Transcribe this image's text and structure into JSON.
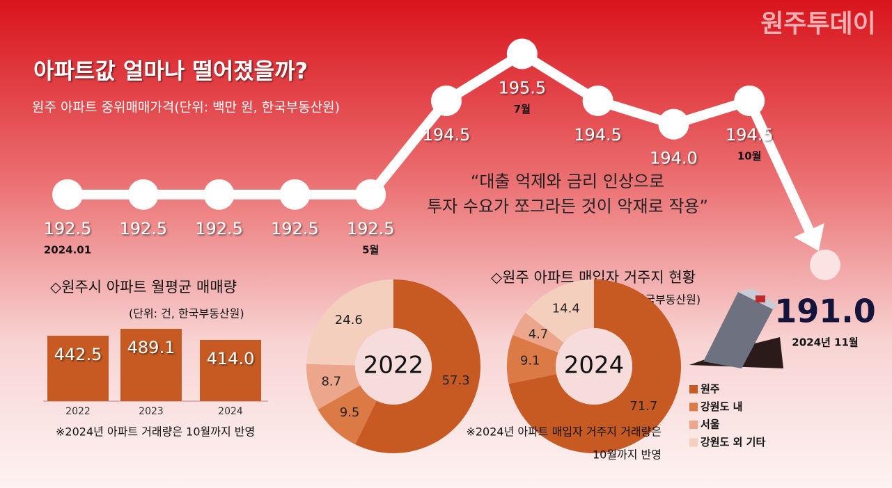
{
  "watermark": "원주투데이",
  "chart_data": [
    {
      "type": "line",
      "title": "아파트값 얼마나 떨어졌을까?",
      "subtitle": "원주 아파트 중위매매가격(단위: 백만 원, 한국부동산원)",
      "categories": [
        "2024.01",
        null,
        null,
        null,
        "5월",
        null,
        "7월",
        null,
        null,
        "10월",
        "2024년 11월"
      ],
      "values": [
        192.5,
        192.5,
        192.5,
        192.5,
        192.5,
        194.5,
        195.5,
        194.5,
        194.0,
        194.5,
        191.0
      ],
      "value_labels": [
        "192.5",
        "192.5",
        "192.5",
        "192.5",
        "192.5",
        "194.5",
        "195.5",
        "194.5",
        "194.0",
        "194.5",
        "191.0"
      ],
      "color": "#ffffff",
      "annotation": [
        "“대출 억제와 금리 인상으로",
        "투자 수요가 쪼그라든 것이 악재로 작용”"
      ]
    },
    {
      "type": "bar",
      "title": "◇원주시 아파트 월평균 매매량",
      "subtitle": "(단위: 건, 한국부동산원)",
      "categories": [
        "2022",
        "2023",
        "2024"
      ],
      "values": [
        442.5,
        489.1,
        414.0
      ],
      "value_labels": [
        "442.5",
        "489.1",
        "414.0"
      ],
      "color": "#c65a22",
      "note": "※2024년 아파트 거래량은 10월까지 반영"
    },
    {
      "type": "donut",
      "title": "◇원주 아파트 매입자 거주지 현황",
      "subtitle": "(단위: %, 한국부동산원)",
      "categories": [
        "원주",
        "강원도 내",
        "서울",
        "강원도 외 기타"
      ],
      "colors": [
        "#c65a22",
        "#dc7a45",
        "#eba68b",
        "#f4cfbe"
      ],
      "series": [
        {
          "name": "2022",
          "values": [
            57.3,
            9.5,
            8.7,
            24.6
          ]
        },
        {
          "name": "2024",
          "values": [
            71.7,
            9.1,
            4.7,
            14.4
          ]
        }
      ],
      "note": [
        "※2024년 아파트 매입자 거주지 거래량은",
        "10월까지 반영"
      ]
    }
  ]
}
